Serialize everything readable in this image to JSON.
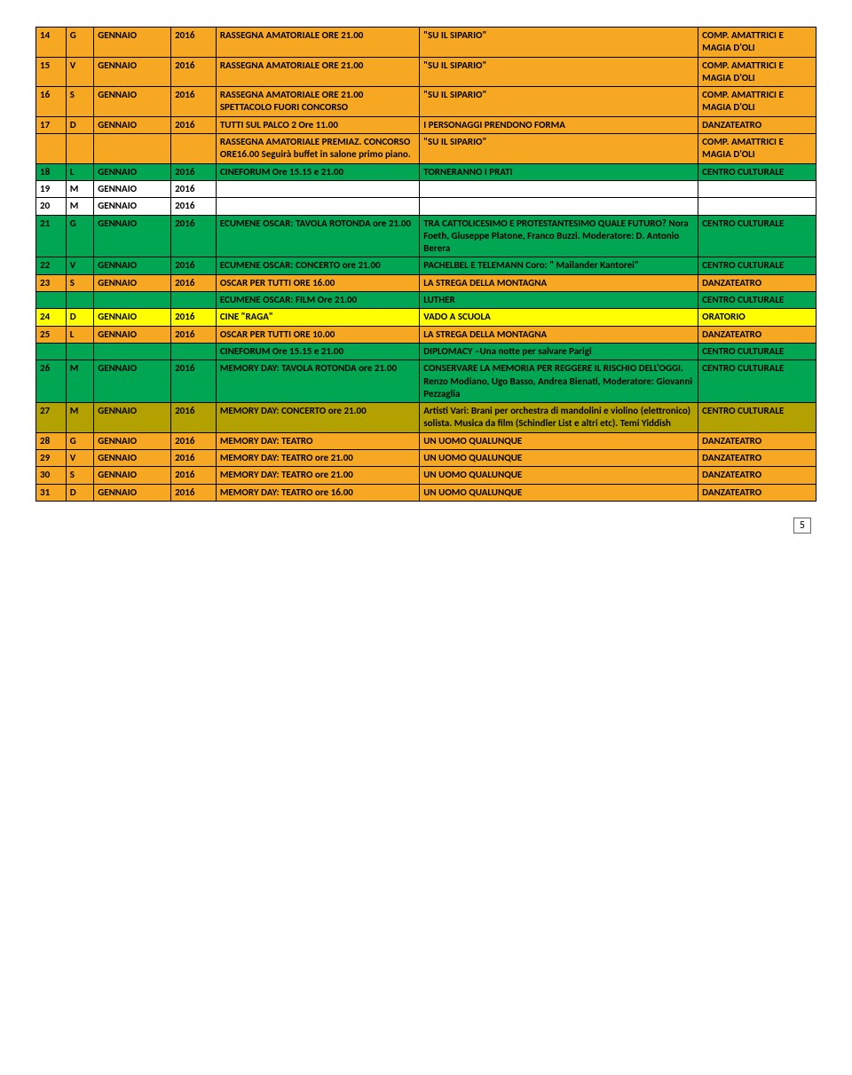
{
  "page_number": "5",
  "colors": {
    "orange": "#f7a823",
    "green": "#00a651",
    "yellow": "#ffff00",
    "olive": "#b3a100",
    "white": "#ffffff",
    "black": "#000000"
  },
  "rows": [
    {
      "bg": "orange",
      "cells": [
        "14",
        "G",
        "GENNAIO",
        "2016",
        "RASSEGNA AMATORIALE ORE 21.00",
        "\"SU IL SIPARIO\"",
        "COMP. AMATTRICI E MAGIA D'OLI"
      ]
    },
    {
      "bg": "orange",
      "cells": [
        "15",
        "V",
        "GENNAIO",
        "2016",
        "RASSEGNA AMATORIALE ORE 21.00",
        "\"SU IL SIPARIO\"",
        "COMP. AMATTRICI E MAGIA D'OLI"
      ]
    },
    {
      "bg": "orange",
      "cells": [
        "16",
        "S",
        "GENNAIO",
        "2016",
        "RASSEGNA AMATORIALE ORE 21.00 SPETTACOLO FUORI CONCORSO",
        "\"SU IL SIPARIO\"",
        "COMP. AMATTRICI E MAGIA D'OLI"
      ]
    },
    {
      "bg": "orange",
      "cells": [
        "17",
        "D",
        "GENNAIO",
        "2016",
        "TUTTI SUL PALCO 2 Ore 11.00",
        "I PERSONAGGI PRENDONO FORMA",
        "DANZATEATRO"
      ]
    },
    {
      "bg": "orange",
      "cells": [
        "",
        "",
        "",
        "",
        "RASSEGNA AMATORIALE PREMIAZ. CONCORSO ORE16.00 Seguirà buffet in salone primo piano.",
        "\"SU IL SIPARIO\"",
        "COMP. AMATTRICI E MAGIA D'OLI"
      ]
    },
    {
      "bg": "green",
      "cells": [
        "18",
        "L",
        "GENNAIO",
        "2016",
        "CINEFORUM Ore 15.15 e 21.00",
        "TORNERANNO I PRATI",
        "CENTRO CULTURALE"
      ]
    },
    {
      "bg": "white",
      "cells": [
        "19",
        "M",
        "GENNAIO",
        "2016",
        "",
        "",
        ""
      ]
    },
    {
      "bg": "white",
      "cells": [
        "20",
        "M",
        "GENNAIO",
        "2016",
        "",
        "",
        ""
      ]
    },
    {
      "bg": "green",
      "cells": [
        "21",
        "G",
        "GENNAIO",
        "2016",
        "ECUMENE OSCAR: TAVOLA ROTONDA ore 21.00",
        "TRA CATTOLICESIMO E PROTESTANTESIMO QUALE FUTURO? Nora Foeth, Giuseppe Platone, Franco Buzzi. Moderatore: D. Antonio Berera",
        "CENTRO CULTURALE"
      ]
    },
    {
      "bg": "green",
      "cells": [
        "22",
        "V",
        "GENNAIO",
        "2016",
        "ECUMENE OSCAR: CONCERTO ore 21.00",
        "PACHELBEL E TELEMANN Coro: \" Mailander Kantorei\"",
        "CENTRO CULTURALE"
      ]
    },
    {
      "bg": "orange",
      "cells": [
        "23",
        "S",
        "GENNAIO",
        "2016",
        "OSCAR PER TUTTI ORE 16.00",
        "LA STREGA DELLA MONTAGNA",
        "DANZATEATRO"
      ]
    },
    {
      "bg": "green",
      "cells": [
        "",
        "",
        "",
        "",
        "ECUMENE OSCAR: FILM Ore 21.00",
        "LUTHER",
        "CENTRO CULTURALE"
      ]
    },
    {
      "bg": "yellow",
      "cells": [
        "24",
        "D",
        "GENNAIO",
        "2016",
        "CINE \"RAGA\"",
        "VADO A SCUOLA",
        "ORATORIO"
      ]
    },
    {
      "bg": "orange",
      "cells": [
        "25",
        "L",
        "GENNAIO",
        "2016",
        "OSCAR PER TUTTI ORE 10.00",
        "LA STREGA DELLA MONTAGNA",
        "DANZATEATRO"
      ]
    },
    {
      "bg": "green",
      "cells": [
        "",
        "",
        "",
        "",
        "CINEFORUM Ore 15.15 e 21.00",
        "DIPLOMACY –Una notte per salvare Parigi",
        "CENTRO CULTURALE"
      ]
    },
    {
      "bg": "green",
      "cells": [
        "26",
        "M",
        "GENNAIO",
        "2016",
        "MEMORY DAY: TAVOLA ROTONDA ore 21.00",
        "CONSERVARE LA MEMORIA PER REGGERE IL RISCHIO DELL'OGGI. Renzo Modiano, Ugo Basso, Andrea Bienati, Moderatore: Giovanni Pezzaglia",
        "CENTRO CULTURALE"
      ]
    },
    {
      "bg": "olive",
      "cells": [
        "27",
        "M",
        "GENNAIO",
        "2016",
        "MEMORY DAY: CONCERTO ore 21.00",
        " Artisti Vari: Brani per orchestra di mandolini e violino (elettronico) solista. Musica da film (Schindler List e altri etc). Temi Yiddish",
        "CENTRO CULTURALE"
      ]
    },
    {
      "bg": "orange",
      "cells": [
        "28",
        "G",
        "GENNAIO",
        "2016",
        "MEMORY DAY: TEATRO",
        "UN UOMO QUALUNQUE",
        "DANZATEATRO"
      ]
    },
    {
      "bg": "orange",
      "cells": [
        "29",
        "V",
        "GENNAIO",
        "2016",
        "MEMORY DAY: TEATRO ore 21.00",
        "UN UOMO QUALUNQUE",
        "DANZATEATRO"
      ]
    },
    {
      "bg": "orange",
      "cells": [
        "30",
        "S",
        "GENNAIO",
        "2016",
        "MEMORY DAY: TEATRO ore 21.00",
        "UN UOMO QUALUNQUE",
        "DANZATEATRO"
      ]
    },
    {
      "bg": "orange",
      "cells": [
        "31",
        "D",
        "GENNAIO",
        "2016",
        "MEMORY DAY: TEATRO ore 16.00",
        "UN UOMO QUALUNQUE",
        "DANZATEATRO"
      ]
    }
  ]
}
